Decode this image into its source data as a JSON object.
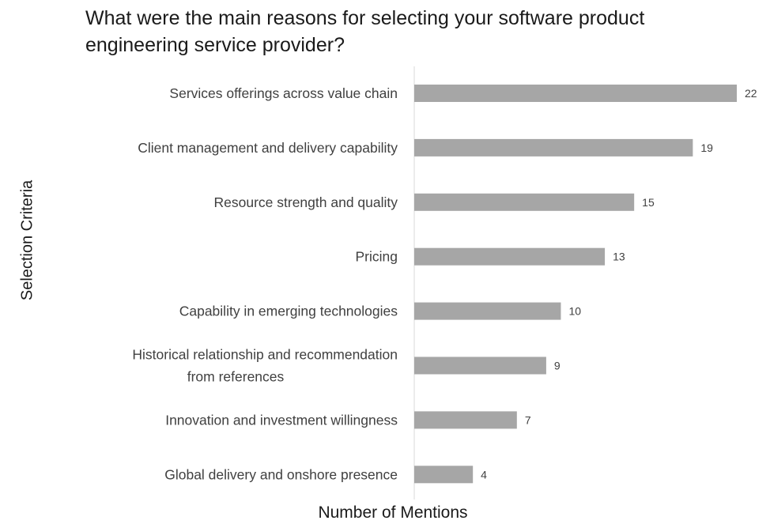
{
  "chart_data": {
    "type": "bar",
    "orientation": "horizontal",
    "title": "What were the main reasons for selecting your software product engineering service provider?",
    "xlabel": "Number of Mentions",
    "ylabel": "Selection Criteria",
    "categories": [
      "Services offerings across value chain",
      "Client management and delivery capability",
      "Resource strength and quality",
      "Pricing",
      "Capability in emerging technologies",
      "Historical relationship and recommendation from references",
      "Innovation and investment willingness",
      "Global delivery and onshore presence"
    ],
    "values": [
      22,
      19,
      15,
      13,
      10,
      9,
      7,
      4
    ],
    "xlim": [
      0,
      22
    ],
    "grid": false,
    "legend": "none",
    "bar_color": "#a6a6a6",
    "axis_color": "#d9d9d9",
    "data_labels": true
  }
}
